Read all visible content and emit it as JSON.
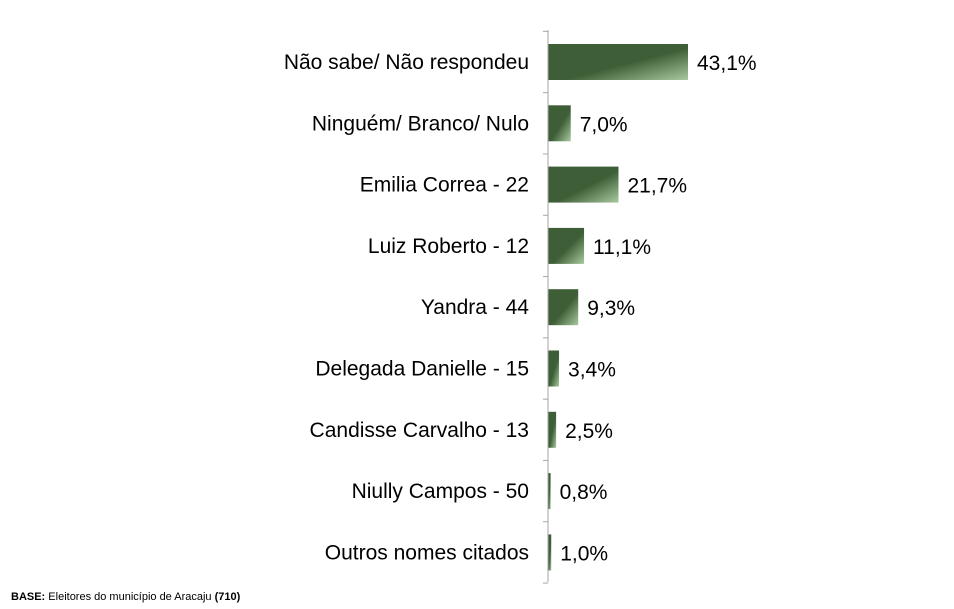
{
  "chart_data": {
    "type": "bar",
    "orientation": "horizontal",
    "categories": [
      "Não sabe/ Não respondeu",
      "Ninguém/ Branco/ Nulo",
      "Emilia Correa - 22",
      "Luiz Roberto - 12",
      "Yandra - 44",
      "Delegada Danielle - 15",
      "Candisse Carvalho - 13",
      "Niully Campos - 50",
      "Outros nomes citados"
    ],
    "values": [
      43.1,
      7.0,
      21.7,
      11.1,
      9.3,
      3.4,
      2.5,
      0.8,
      1.0
    ],
    "value_labels": [
      "43,1%",
      "7,0%",
      "21,7%",
      "11,1%",
      "9,3%",
      "3,4%",
      "2,5%",
      "0,8%",
      "1,0%"
    ],
    "xlim": [
      0,
      43.1
    ],
    "grid": false,
    "legend": "none",
    "title": "",
    "xlabel": "",
    "ylabel": ""
  },
  "colors": {
    "bar_dark": "#3e5e37",
    "bar_light": "#a9c9a0",
    "axis": "#a6a6a6"
  },
  "footnote": {
    "label": "BASE:",
    "text": " Eleitores do município de Aracaju ",
    "count": "(710)"
  }
}
